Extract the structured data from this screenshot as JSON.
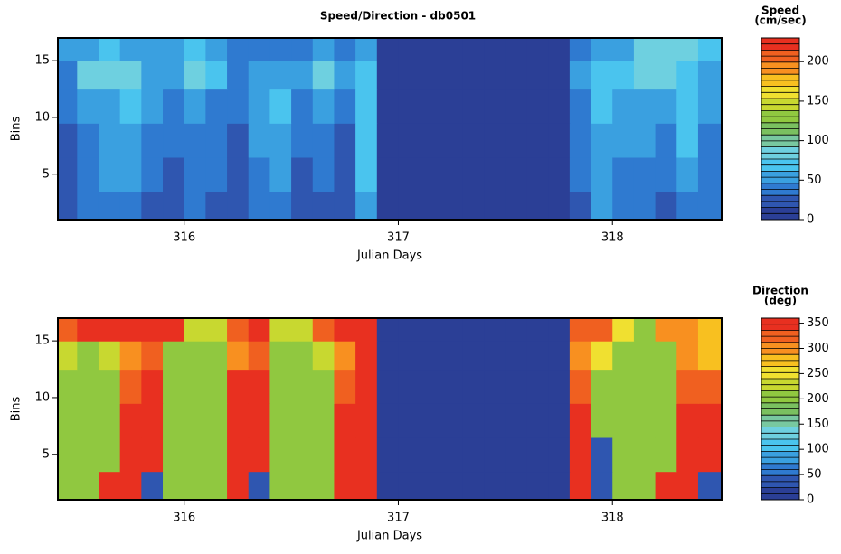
{
  "chart_data": [
    {
      "type": "heatmap",
      "title": "Speed/Direction - db0501",
      "xlabel": "Julian Days",
      "ylabel": "Bins",
      "colorbar_label": [
        "Speed",
        "(cm/sec)"
      ],
      "x": [
        315.45,
        315.55,
        315.65,
        315.75,
        315.85,
        315.95,
        316.05,
        316.15,
        316.25,
        316.35,
        316.45,
        316.55,
        316.65,
        316.75,
        316.85,
        316.95,
        317.05,
        317.15,
        317.25,
        317.35,
        317.45,
        317.55,
        317.65,
        317.75,
        317.85,
        317.95,
        318.05,
        318.15,
        318.25,
        318.35,
        318.45
      ],
      "y": [
        2,
        5,
        8,
        11,
        14,
        16
      ],
      "z": [
        [
          20,
          35,
          45,
          40,
          30,
          25,
          35,
          30,
          25,
          40,
          40,
          25,
          30,
          20,
          60,
          0,
          0,
          0,
          0,
          0,
          0,
          0,
          0,
          0,
          30,
          50,
          40,
          35,
          30,
          45,
          35
        ],
        [
          25,
          40,
          50,
          50,
          40,
          30,
          40,
          35,
          30,
          45,
          50,
          30,
          35,
          25,
          65,
          0,
          0,
          0,
          0,
          0,
          0,
          0,
          0,
          0,
          35,
          55,
          45,
          40,
          40,
          55,
          40
        ],
        [
          30,
          45,
          55,
          60,
          45,
          35,
          45,
          40,
          30,
          55,
          60,
          35,
          40,
          30,
          70,
          0,
          0,
          0,
          0,
          0,
          0,
          0,
          0,
          0,
          40,
          60,
          50,
          50,
          45,
          65,
          45
        ],
        [
          35,
          55,
          60,
          70,
          50,
          40,
          55,
          45,
          35,
          60,
          65,
          40,
          50,
          35,
          70,
          0,
          0,
          0,
          0,
          0,
          0,
          0,
          0,
          0,
          45,
          65,
          55,
          60,
          55,
          70,
          50
        ],
        [
          40,
          80,
          90,
          80,
          55,
          60,
          90,
          70,
          40,
          55,
          60,
          55,
          85,
          50,
          65,
          0,
          0,
          0,
          0,
          0,
          0,
          0,
          0,
          0,
          50,
          70,
          65,
          90,
          85,
          75,
          60
        ],
        [
          55,
          60,
          70,
          60,
          50,
          50,
          70,
          55,
          40,
          45,
          45,
          45,
          60,
          40,
          55,
          0,
          0,
          0,
          0,
          0,
          0,
          0,
          0,
          0,
          45,
          60,
          60,
          80,
          90,
          80,
          70
        ]
      ],
      "xlim": [
        315.41,
        318.51
      ],
      "ylim": [
        1,
        17
      ],
      "zlim": [
        0,
        230
      ],
      "xticks": [
        316,
        317,
        318
      ],
      "yticks": [
        5,
        10,
        15
      ],
      "zticks": [
        0,
        50,
        100,
        150,
        200
      ],
      "colormap": [
        "#2b3f96",
        "#2f56b0",
        "#2f7ad0",
        "#3aa0e0",
        "#4ac4ee",
        "#6ed0e0",
        "#78c8a0",
        "#7ac060",
        "#90c840",
        "#c8d830",
        "#f0e030",
        "#f8c020",
        "#f89020",
        "#f06020",
        "#e83020"
      ]
    },
    {
      "type": "heatmap",
      "xlabel": "Julian Days",
      "ylabel": "Bins",
      "colorbar_label": [
        "Direction",
        "(deg)"
      ],
      "x": [
        315.45,
        315.55,
        315.65,
        315.75,
        315.85,
        315.95,
        316.05,
        316.15,
        316.25,
        316.35,
        316.45,
        316.55,
        316.65,
        316.75,
        316.85,
        316.95,
        317.05,
        317.15,
        317.25,
        317.35,
        317.45,
        317.55,
        317.65,
        317.75,
        317.85,
        317.95,
        318.05,
        318.15,
        318.25,
        318.35,
        318.45
      ],
      "y": [
        2,
        5,
        8,
        11,
        14,
        16
      ],
      "z": [
        [
          200,
          200,
          340,
          350,
          30,
          200,
          200,
          200,
          350,
          30,
          200,
          200,
          200,
          350,
          350,
          0,
          0,
          0,
          0,
          0,
          0,
          0,
          0,
          0,
          350,
          30,
          200,
          200,
          350,
          350,
          30
        ],
        [
          200,
          200,
          200,
          350,
          350,
          200,
          200,
          200,
          350,
          350,
          200,
          200,
          200,
          350,
          350,
          0,
          0,
          0,
          0,
          0,
          0,
          0,
          0,
          0,
          350,
          30,
          200,
          200,
          200,
          350,
          350
        ],
        [
          200,
          200,
          200,
          340,
          350,
          200,
          200,
          200,
          350,
          350,
          200,
          200,
          200,
          345,
          350,
          0,
          0,
          0,
          0,
          0,
          0,
          0,
          0,
          0,
          350,
          200,
          200,
          200,
          200,
          340,
          340
        ],
        [
          200,
          200,
          200,
          330,
          345,
          200,
          200,
          200,
          340,
          345,
          200,
          200,
          210,
          330,
          350,
          0,
          0,
          0,
          0,
          0,
          0,
          0,
          0,
          0,
          330,
          200,
          200,
          200,
          200,
          330,
          330
        ],
        [
          220,
          210,
          220,
          300,
          320,
          200,
          200,
          200,
          300,
          330,
          200,
          200,
          220,
          300,
          350,
          0,
          0,
          0,
          0,
          0,
          0,
          0,
          0,
          0,
          300,
          250,
          200,
          200,
          210,
          300,
          280
        ],
        [
          330,
          340,
          340,
          340,
          340,
          340,
          220,
          220,
          330,
          340,
          220,
          220,
          330,
          340,
          350,
          0,
          0,
          0,
          0,
          0,
          0,
          0,
          0,
          0,
          330,
          320,
          240,
          200,
          300,
          290,
          270
        ]
      ],
      "xlim": [
        315.41,
        318.51
      ],
      "ylim": [
        1,
        17
      ],
      "zlim": [
        0,
        360
      ],
      "xticks": [
        316,
        317,
        318
      ],
      "yticks": [
        5,
        10,
        15
      ],
      "zticks": [
        0,
        50,
        100,
        150,
        200,
        250,
        300,
        350
      ],
      "colormap": [
        "#2b3f96",
        "#2f56b0",
        "#2f7ad0",
        "#3aa0e0",
        "#4ac4ee",
        "#6ed0e0",
        "#78c8a0",
        "#7ac060",
        "#90c840",
        "#c8d830",
        "#f0e030",
        "#f8c020",
        "#f89020",
        "#f06020",
        "#e83020"
      ]
    }
  ]
}
